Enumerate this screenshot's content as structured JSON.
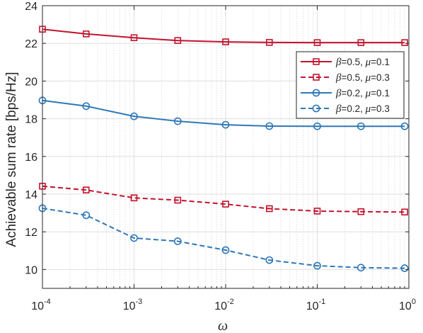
{
  "chart_data": {
    "type": "line",
    "x_scale": "log",
    "xlabel": "ω",
    "ylabel": "Achievable sum rate [bps/Hz]",
    "xlim": [
      0.0001,
      1
    ],
    "ylim": [
      9,
      24
    ],
    "x_ticks": [
      {
        "base": "10",
        "exp": "-4",
        "value": 0.0001
      },
      {
        "base": "10",
        "exp": "-3",
        "value": 0.001
      },
      {
        "base": "10",
        "exp": "-2",
        "value": 0.01
      },
      {
        "base": "10",
        "exp": "-1",
        "value": 0.1
      },
      {
        "base": "10",
        "exp": "0",
        "value": 1
      }
    ],
    "y_ticks": [
      10,
      12,
      14,
      16,
      18,
      20,
      22,
      24
    ],
    "grid": true,
    "minor_grid_x": true,
    "legend_position": "right",
    "x": [
      0.0001,
      0.0003,
      0.001,
      0.003,
      0.01,
      0.03,
      0.1,
      0.3,
      0.9
    ],
    "series": [
      {
        "beta": "0.5",
        "mu": "0.1",
        "values": [
          22.75,
          22.5,
          22.3,
          22.15,
          22.08,
          22.05,
          22.04,
          22.04,
          22.04
        ],
        "color": "#c3132e",
        "dash": "solid",
        "marker": "square"
      },
      {
        "beta": "0.5",
        "mu": "0.3",
        "values": [
          14.42,
          14.22,
          13.8,
          13.68,
          13.47,
          13.23,
          13.1,
          13.07,
          13.05
        ],
        "color": "#c3132e",
        "dash": "dashed",
        "marker": "square"
      },
      {
        "beta": "0.2",
        "mu": "0.1",
        "values": [
          18.97,
          18.67,
          18.13,
          17.87,
          17.68,
          17.61,
          17.6,
          17.6,
          17.6
        ],
        "color": "#2f78b7",
        "dash": "solid",
        "marker": "circle"
      },
      {
        "beta": "0.2",
        "mu": "0.3",
        "values": [
          13.25,
          12.88,
          11.67,
          11.5,
          11.03,
          10.5,
          10.2,
          10.1,
          10.07
        ],
        "color": "#2f78b7",
        "dash": "dashed",
        "marker": "circle"
      }
    ]
  }
}
